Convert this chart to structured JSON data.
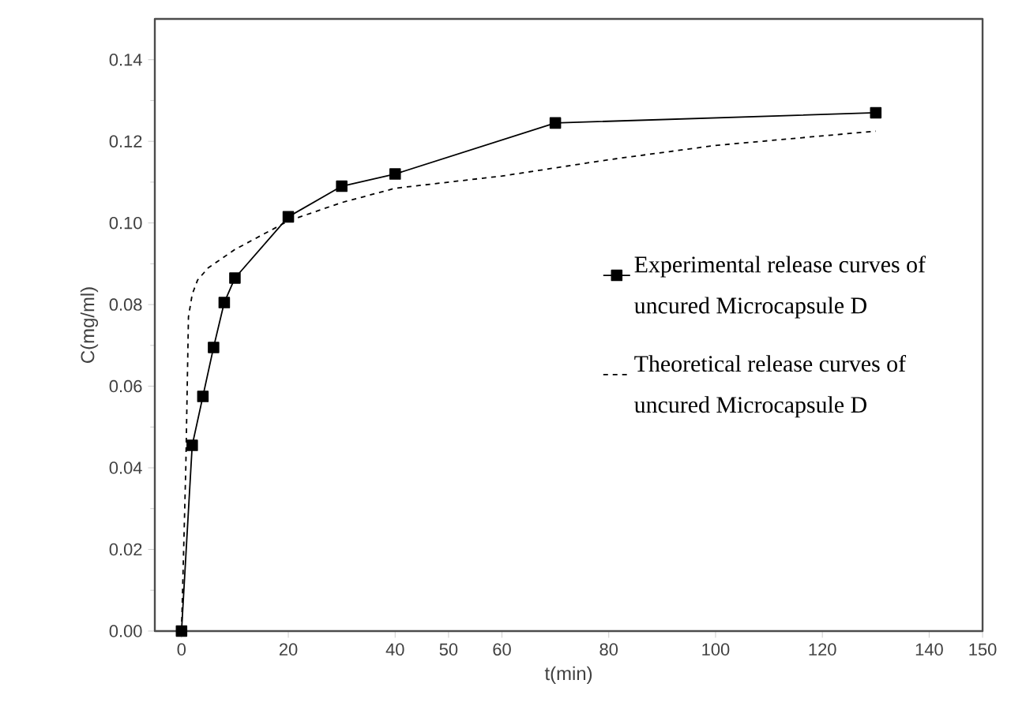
{
  "chart_data": {
    "type": "line",
    "xlabel": "t(min)",
    "ylabel": "C(mg/ml)",
    "xlim": [
      -5,
      150
    ],
    "ylim": [
      0,
      0.15
    ],
    "xticks": [
      0,
      20,
      40,
      50,
      60,
      80,
      100,
      120,
      140,
      150
    ],
    "yticks": [
      {
        "value": 0,
        "label": "0.00"
      },
      {
        "value": 0.02,
        "label": "0.02"
      },
      {
        "value": 0.04,
        "label": "0.04"
      },
      {
        "value": 0.06,
        "label": "0.06"
      },
      {
        "value": 0.08,
        "label": "0.08"
      },
      {
        "value": 0.1,
        "label": "0.10"
      },
      {
        "value": 0.12,
        "label": "0.12"
      },
      {
        "value": 0.14,
        "label": "0.14"
      }
    ],
    "grid": false,
    "legend": "right",
    "series": [
      {
        "name": "Experimental release curves of uncured Microcapsule D",
        "color": "#000000",
        "marker": "square",
        "line_style": "solid",
        "x": [
          0,
          2,
          4,
          6,
          8,
          10,
          20,
          30,
          40,
          70,
          130
        ],
        "values": [
          0,
          0.0455,
          0.0575,
          0.0695,
          0.0805,
          0.0865,
          0.1015,
          0.109,
          0.112,
          0.1245,
          0.127
        ]
      },
      {
        "name": "Theoretical release curves of uncured Microcapsule D",
        "color": "#000000",
        "marker": "none",
        "line_style": "dashed",
        "x": [
          0,
          0.8,
          1.3,
          2,
          3,
          5,
          10,
          15,
          20,
          30,
          40,
          60,
          80,
          100,
          130
        ],
        "values": [
          0,
          0.04,
          0.077,
          0.0825,
          0.086,
          0.089,
          0.0935,
          0.097,
          0.1005,
          0.105,
          0.1085,
          0.1115,
          0.1155,
          0.119,
          0.1225
        ]
      }
    ]
  }
}
